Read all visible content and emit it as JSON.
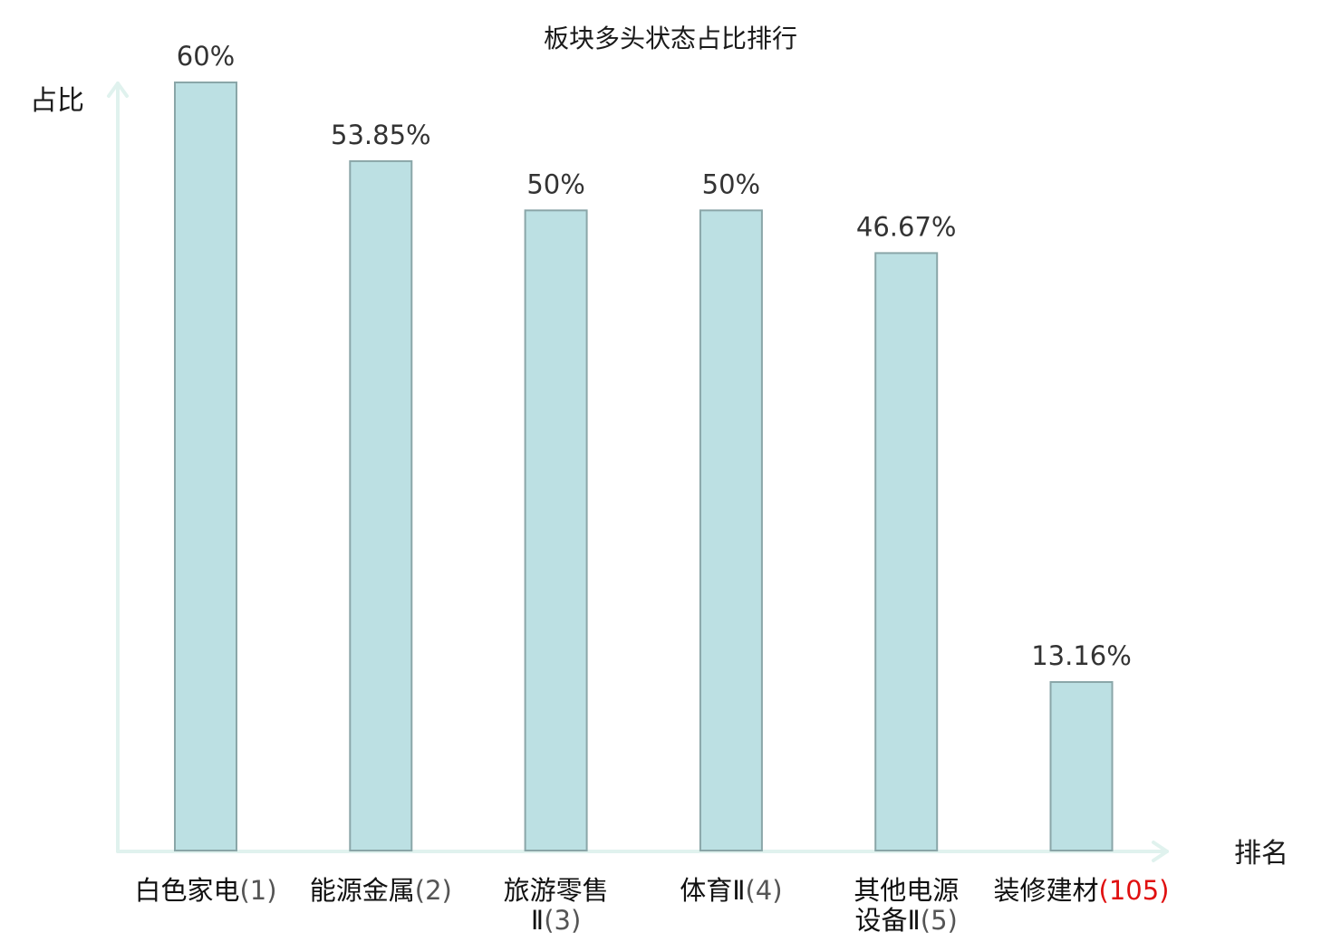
{
  "chart_data": {
    "type": "bar",
    "title": "板块多头状态占比排行",
    "xlabel": "排名",
    "ylabel": "占比",
    "ylim": [
      0,
      60
    ],
    "grid": false,
    "legend": "none",
    "categories": [
      {
        "lines": [
          "白色家电"
        ],
        "rank": "(1)",
        "highlight": false
      },
      {
        "lines": [
          "能源金属"
        ],
        "rank": "(2)",
        "highlight": false
      },
      {
        "lines": [
          "旅游零售",
          "Ⅱ"
        ],
        "rank": "(3)",
        "highlight": false
      },
      {
        "lines": [
          "体育Ⅱ"
        ],
        "rank": "(4)",
        "highlight": false
      },
      {
        "lines": [
          "其他电源",
          "设备Ⅱ"
        ],
        "rank": "(5)",
        "highlight": false
      },
      {
        "lines": [
          "装修建材"
        ],
        "rank": "(105)",
        "highlight": true
      }
    ],
    "values": [
      60,
      53.85,
      50,
      50,
      46.67,
      13.16
    ],
    "value_labels": [
      "60%",
      "53.85%",
      "50%",
      "50%",
      "46.67%",
      "13.16%"
    ],
    "colors": {
      "bar_fill": "#bce0e3",
      "bar_stroke": "#8aa6a8",
      "axis": "#e0f2ee",
      "highlight_label": "#e01010"
    }
  }
}
